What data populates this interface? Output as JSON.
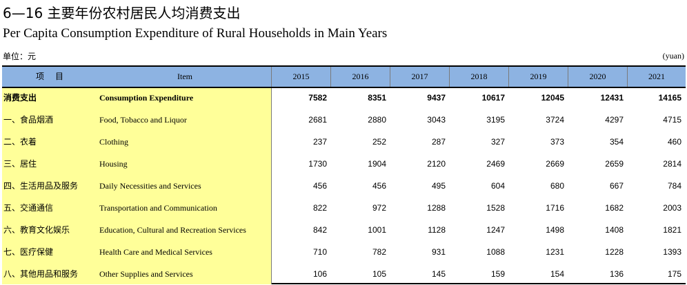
{
  "title_cn": "6—16 主要年份农村居民人均消费支出",
  "title_en": "Per Capita Consumption Expenditure of Rural Households in Main Years",
  "unit_cn": "单位：元",
  "unit_en": "(yuan)",
  "header": {
    "item_cn": "项目",
    "item_en": "Item",
    "years": [
      "2015",
      "2016",
      "2017",
      "2018",
      "2019",
      "2020",
      "2021"
    ]
  },
  "rows": [
    {
      "cn": "消费支出",
      "en": "Consumption Expenditure",
      "bold": true,
      "values": [
        "7582",
        "8351",
        "9437",
        "10617",
        "12045",
        "12431",
        "14165"
      ]
    },
    {
      "cn": "一、食品烟酒",
      "en": "Food, Tobacco and Liquor",
      "values": [
        "2681",
        "2880",
        "3043",
        "3195",
        "3724",
        "4297",
        "4715"
      ]
    },
    {
      "cn": "二、衣着",
      "en": "Clothing",
      "values": [
        "237",
        "252",
        "287",
        "327",
        "373",
        "354",
        "460"
      ]
    },
    {
      "cn": "三、居住",
      "en": "Housing",
      "values": [
        "1730",
        "1904",
        "2120",
        "2469",
        "2669",
        "2659",
        "2814"
      ]
    },
    {
      "cn": "四、生活用品及服务",
      "en": "Daily Necessities and Services",
      "values": [
        "456",
        "456",
        "495",
        "604",
        "680",
        "667",
        "784"
      ]
    },
    {
      "cn": "五、交通通信",
      "en": "Transportation and Communication",
      "values": [
        "822",
        "972",
        "1288",
        "1528",
        "1716",
        "1682",
        "2003"
      ]
    },
    {
      "cn": "六、教育文化娱乐",
      "en": "Education, Cultural and Recreation Services",
      "values": [
        "842",
        "1001",
        "1128",
        "1247",
        "1498",
        "1408",
        "1821"
      ]
    },
    {
      "cn": "七、医疗保健",
      "en": "Health Care and Medical Services",
      "values": [
        "710",
        "782",
        "931",
        "1088",
        "1231",
        "1228",
        "1393"
      ]
    },
    {
      "cn": "八、其他用品和服务",
      "en": "Other Supplies and Services",
      "values": [
        "106",
        "105",
        "145",
        "159",
        "154",
        "136",
        "175"
      ]
    }
  ]
}
